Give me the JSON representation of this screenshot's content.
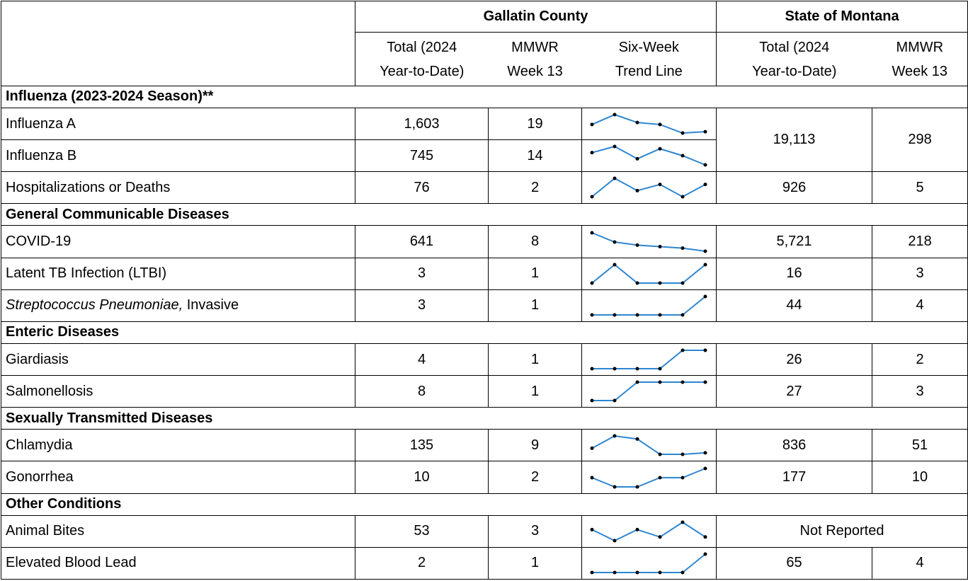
{
  "header": {
    "groups": [
      "Gallatin County",
      "State of Montana"
    ],
    "columns": [
      [
        "Total (2024",
        "Year-to-Date)"
      ],
      [
        "MMWR",
        "Week 13"
      ],
      [
        "Six-Week",
        "Trend Line"
      ],
      [
        "Total (2024",
        "Year-to-Date)"
      ],
      [
        "MMWR",
        "Week 13"
      ]
    ]
  },
  "sections": [
    {
      "title": "Influenza (2023-2024 Season)**",
      "rows": [
        {
          "label": "Influenza A",
          "total": "1,603",
          "week": "19",
          "trend": [
            30,
            45,
            33,
            30,
            17,
            19
          ],
          "state_total": "19,113",
          "state_week": "298"
        },
        {
          "label": "Influenza B",
          "total": "745",
          "week": "14",
          "trend": [
            30,
            38,
            22,
            35,
            26,
            14
          ]
        },
        {
          "label": "Hospitalizations or Deaths",
          "total": "76",
          "week": "2",
          "trend": [
            0,
            3,
            1,
            2,
            0,
            2
          ],
          "state_total": "926",
          "state_week": "5"
        }
      ]
    },
    {
      "title": "General Communicable Diseases",
      "rows": [
        {
          "label": "COVID-19",
          "total": "641",
          "week": "8",
          "trend": [
            20,
            14,
            12,
            11,
            10,
            8
          ],
          "state_total": "5,721",
          "state_week": "218"
        },
        {
          "label": "Latent TB Infection (LTBI)",
          "total": "3",
          "week": "1",
          "trend": [
            0,
            1,
            0,
            0,
            0,
            1
          ],
          "state_total": "16",
          "state_week": "3"
        },
        {
          "label_italic": "Streptococcus Pneumoniae,",
          "label": " Invasive",
          "total": "3",
          "week": "1",
          "trend": [
            0,
            0,
            0,
            0,
            0,
            1
          ],
          "state_total": "44",
          "state_week": "4"
        }
      ]
    },
    {
      "title": "Enteric Diseases",
      "rows": [
        {
          "label": "Giardiasis",
          "total": "4",
          "week": "1",
          "trend": [
            0,
            0,
            0,
            0,
            1,
            1
          ],
          "state_total": "26",
          "state_week": "2"
        },
        {
          "label": "Salmonellosis",
          "total": "8",
          "week": "1",
          "trend": [
            0,
            0,
            1,
            1,
            1,
            1
          ],
          "state_total": "27",
          "state_week": "3"
        }
      ]
    },
    {
      "title": "Sexually Transmitted Diseases",
      "rows": [
        {
          "label": "Chlamydia",
          "total": "135",
          "week": "9",
          "trend": [
            12,
            20,
            18,
            8,
            8,
            9
          ],
          "state_total": "836",
          "state_week": "51"
        },
        {
          "label": "Gonorrhea",
          "total": "10",
          "week": "2",
          "trend": [
            1,
            0,
            0,
            1,
            1,
            2
          ],
          "state_total": "177",
          "state_week": "10"
        }
      ]
    },
    {
      "title": "Other Conditions",
      "rows": [
        {
          "label": "Animal Bites",
          "total": "53",
          "week": "3",
          "trend": [
            5,
            2,
            5,
            3,
            7,
            3
          ],
          "state": "Not Reported"
        },
        {
          "label": "Elevated Blood Lead",
          "total": "2",
          "week": "1",
          "trend": [
            0,
            0,
            0,
            0,
            0,
            1
          ],
          "state_total": "65",
          "state_week": "4"
        }
      ]
    }
  ]
}
